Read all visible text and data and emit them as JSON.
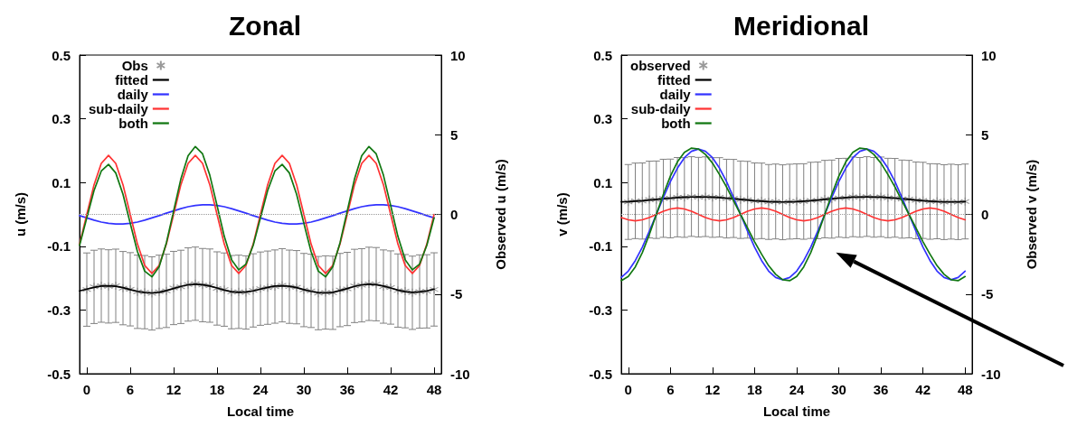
{
  "chart_data": [
    {
      "type": "line",
      "title": "Zonal",
      "xlabel": "Local time",
      "ylabel": "u (m/s)",
      "y2label": "Observed u (m/s)",
      "x": [
        -1,
        0,
        1,
        2,
        3,
        4,
        5,
        6,
        7,
        8,
        9,
        10,
        11,
        12,
        13,
        14,
        15,
        16,
        17,
        18,
        19,
        20,
        21,
        22,
        23,
        24,
        25,
        26,
        27,
        28,
        29,
        30,
        31,
        32,
        33,
        34,
        35,
        36,
        37,
        38,
        39,
        40,
        41,
        42,
        43,
        44,
        45,
        46,
        47,
        48
      ],
      "xlim": [
        -1,
        49
      ],
      "xticks": [
        0,
        6,
        12,
        18,
        24,
        30,
        36,
        42,
        48
      ],
      "ylim": [
        -0.5,
        0.5
      ],
      "yticks": [
        -0.5,
        -0.3,
        -0.1,
        0.1,
        0.3,
        0.5
      ],
      "y2lim": [
        -10,
        10
      ],
      "y2ticks": [
        -10,
        -5,
        0,
        5,
        10
      ],
      "grid": false,
      "legend": "top left",
      "ref_lines": [
        {
          "axis": "y",
          "value": 0,
          "color": "#999999",
          "line_style": "dotted"
        }
      ],
      "series": [
        {
          "name": "Obs",
          "type": "scatter",
          "axis": "y2",
          "marker": "cross",
          "color": "#808080",
          "x": [
            0,
            1,
            2,
            3,
            4,
            5,
            6,
            7,
            8,
            9,
            10,
            11,
            12,
            13,
            14,
            15,
            16,
            17,
            18,
            19,
            20,
            21,
            22,
            23,
            24,
            25,
            26,
            27,
            28,
            29,
            30,
            31,
            32,
            33,
            34,
            35,
            36,
            37,
            38,
            39,
            40,
            41,
            42,
            43,
            44,
            45,
            46,
            47,
            48
          ],
          "values": [
            -4.72,
            -4.55,
            -4.47,
            -4.52,
            -4.48,
            -4.63,
            -4.7,
            -4.86,
            -4.88,
            -4.96,
            -4.86,
            -4.8,
            -4.62,
            -4.55,
            -4.4,
            -4.35,
            -4.44,
            -4.47,
            -4.65,
            -4.72,
            -4.88,
            -4.86,
            -4.9,
            -4.77,
            -4.66,
            -4.6,
            -4.53,
            -4.45,
            -4.54,
            -4.57,
            -4.75,
            -4.8,
            -4.94,
            -4.9,
            -4.92,
            -4.75,
            -4.68,
            -4.49,
            -4.45,
            -4.36,
            -4.38,
            -4.53,
            -4.59,
            -4.78,
            -4.82,
            -4.92,
            -4.84,
            -4.83,
            -4.71
          ],
          "errors": [
            2.3,
            2.3,
            2.3,
            2.3,
            2.3,
            2.3,
            2.3,
            2.3,
            2.3,
            2.3,
            2.3,
            2.3,
            2.3,
            2.3,
            2.3,
            2.3,
            2.3,
            2.3,
            2.3,
            2.3,
            2.3,
            2.3,
            2.3,
            2.3,
            2.3,
            2.3,
            2.3,
            2.3,
            2.3,
            2.3,
            2.3,
            2.3,
            2.3,
            2.3,
            2.3,
            2.3,
            2.3,
            2.3,
            2.3,
            2.3,
            2.3,
            2.3,
            2.3,
            2.3,
            2.3,
            2.3,
            2.3,
            2.3,
            2.3
          ]
        },
        {
          "name": "fitted",
          "axis": "y2",
          "color": "#000000",
          "values": [
            -4.8,
            -4.69,
            -4.58,
            -4.5,
            -4.48,
            -4.51,
            -4.6,
            -4.72,
            -4.83,
            -4.91,
            -4.93,
            -4.89,
            -4.78,
            -4.65,
            -4.52,
            -4.42,
            -4.38,
            -4.41,
            -4.5,
            -4.62,
            -4.75,
            -4.85,
            -4.89,
            -4.87,
            -4.8,
            -4.69,
            -4.58,
            -4.5,
            -4.48,
            -4.51,
            -4.6,
            -4.72,
            -4.83,
            -4.91,
            -4.93,
            -4.89,
            -4.78,
            -4.65,
            -4.52,
            -4.42,
            -4.38,
            -4.41,
            -4.5,
            -4.62,
            -4.75,
            -4.85,
            -4.89,
            -4.87,
            -4.8,
            -4.69
          ]
        },
        {
          "name": "daily",
          "color": "#3333ff",
          "values": [
            -0.004,
            -0.011,
            -0.018,
            -0.024,
            -0.028,
            -0.03,
            -0.03,
            -0.028,
            -0.024,
            -0.018,
            -0.011,
            -0.004,
            0.004,
            0.011,
            0.018,
            0.024,
            0.028,
            0.03,
            0.03,
            0.028,
            0.024,
            0.018,
            0.011,
            0.004,
            -0.004,
            -0.011,
            -0.018,
            -0.024,
            -0.028,
            -0.03,
            -0.03,
            -0.028,
            -0.024,
            -0.018,
            -0.011,
            -0.004,
            0.004,
            0.011,
            0.018,
            0.024,
            0.028,
            0.03,
            0.03,
            0.028,
            0.024,
            0.018,
            0.011,
            0.004,
            -0.004,
            -0.011
          ]
        },
        {
          "name": "sub-daily",
          "color": "#ff3333",
          "values": [
            -0.093,
            0,
            0.093,
            0.16,
            0.185,
            0.16,
            0.093,
            0,
            -0.093,
            -0.16,
            -0.185,
            -0.16,
            -0.093,
            0,
            0.093,
            0.16,
            0.185,
            0.16,
            0.093,
            0,
            -0.093,
            -0.16,
            -0.185,
            -0.16,
            -0.093,
            0,
            0.093,
            0.16,
            0.185,
            0.16,
            0.093,
            0,
            -0.093,
            -0.16,
            -0.185,
            -0.16,
            -0.093,
            0,
            0.093,
            0.16,
            0.185,
            0.16,
            0.093,
            0,
            -0.093,
            -0.16,
            -0.185,
            -0.16,
            -0.093,
            0
          ]
        },
        {
          "name": "both",
          "color": "#117711",
          "values": [
            -0.097,
            -0.011,
            0.075,
            0.136,
            0.157,
            0.13,
            0.063,
            -0.028,
            -0.117,
            -0.178,
            -0.196,
            -0.164,
            -0.089,
            0.011,
            0.111,
            0.184,
            0.213,
            0.19,
            0.123,
            0.028,
            -0.069,
            -0.142,
            -0.174,
            -0.156,
            -0.097,
            -0.011,
            0.075,
            0.136,
            0.157,
            0.13,
            0.063,
            -0.028,
            -0.117,
            -0.178,
            -0.196,
            -0.164,
            -0.089,
            0.011,
            0.111,
            0.184,
            0.213,
            0.19,
            0.123,
            0.028,
            -0.069,
            -0.142,
            -0.174,
            -0.156,
            -0.097,
            -0.011
          ]
        }
      ]
    },
    {
      "type": "line",
      "title": "Meridional",
      "xlabel": "Local time",
      "ylabel": "v (m/s)",
      "y2label": "Observed v (m/s)",
      "x": [
        -1,
        0,
        1,
        2,
        3,
        4,
        5,
        6,
        7,
        8,
        9,
        10,
        11,
        12,
        13,
        14,
        15,
        16,
        17,
        18,
        19,
        20,
        21,
        22,
        23,
        24,
        25,
        26,
        27,
        28,
        29,
        30,
        31,
        32,
        33,
        34,
        35,
        36,
        37,
        38,
        39,
        40,
        41,
        42,
        43,
        44,
        45,
        46,
        47,
        48
      ],
      "xlim": [
        -1,
        49
      ],
      "xticks": [
        0,
        6,
        12,
        18,
        24,
        30,
        36,
        42,
        48
      ],
      "ylim": [
        -0.5,
        0.5
      ],
      "yticks": [
        -0.5,
        -0.3,
        -0.1,
        0.1,
        0.3,
        0.5
      ],
      "y2lim": [
        -10,
        10
      ],
      "y2ticks": [
        -10,
        -5,
        0,
        5,
        10
      ],
      "grid": false,
      "legend": "top left",
      "ref_lines": [
        {
          "axis": "y",
          "value": 0,
          "color": "#999999",
          "line_style": "dotted"
        }
      ],
      "series": [
        {
          "name": "observed",
          "type": "scatter",
          "axis": "y2",
          "marker": "cross",
          "color": "#808080",
          "x": [
            0,
            1,
            2,
            3,
            4,
            5,
            6,
            7,
            8,
            9,
            10,
            11,
            12,
            13,
            14,
            15,
            16,
            17,
            18,
            19,
            20,
            21,
            22,
            23,
            24,
            25,
            26,
            27,
            28,
            29,
            30,
            31,
            32,
            33,
            34,
            35,
            36,
            37,
            38,
            39,
            40,
            41,
            42,
            43,
            44,
            45,
            46,
            47,
            48
          ],
          "values": [
            0.78,
            0.85,
            0.84,
            0.93,
            0.92,
            1.01,
            1.0,
            1.08,
            1.06,
            1.12,
            1.08,
            1.11,
            1.06,
            1.07,
            0.99,
            1.0,
            0.92,
            0.92,
            0.84,
            0.85,
            0.78,
            0.81,
            0.76,
            0.8,
            0.82,
            0.81,
            0.88,
            0.88,
            0.96,
            0.96,
            1.04,
            1.03,
            1.1,
            1.07,
            1.12,
            1.07,
            1.1,
            1.03,
            1.04,
            0.96,
            0.96,
            0.88,
            0.88,
            0.81,
            0.82,
            0.77,
            0.8,
            0.77,
            0.81
          ],
          "errors": [
            2.35,
            2.37,
            2.39,
            2.41,
            2.43,
            2.45,
            2.47,
            2.49,
            2.5,
            2.5,
            2.5,
            2.5,
            2.5,
            2.49,
            2.47,
            2.45,
            2.43,
            2.41,
            2.39,
            2.37,
            2.35,
            2.35,
            2.35,
            2.35,
            2.35,
            2.37,
            2.39,
            2.41,
            2.43,
            2.45,
            2.47,
            2.49,
            2.5,
            2.5,
            2.5,
            2.5,
            2.5,
            2.49,
            2.47,
            2.45,
            2.43,
            2.41,
            2.39,
            2.37,
            2.35,
            2.35,
            2.35,
            2.35,
            2.35
          ]
        },
        {
          "name": "fitted",
          "axis": "y2",
          "color": "#000000",
          "values": [
            0.79,
            0.8,
            0.83,
            0.86,
            0.9,
            0.94,
            0.98,
            1.02,
            1.05,
            1.08,
            1.09,
            1.1,
            1.09,
            1.08,
            1.05,
            1.02,
            0.98,
            0.94,
            0.9,
            0.86,
            0.83,
            0.8,
            0.79,
            0.78,
            0.79,
            0.8,
            0.83,
            0.86,
            0.9,
            0.94,
            0.98,
            1.02,
            1.05,
            1.08,
            1.09,
            1.1,
            1.09,
            1.08,
            1.05,
            1.02,
            0.98,
            0.94,
            0.9,
            0.86,
            0.83,
            0.8,
            0.79,
            0.78,
            0.79,
            0.8
          ]
        },
        {
          "name": "daily",
          "color": "#3333ff",
          "values": [
            -0.198,
            -0.178,
            -0.145,
            -0.103,
            -0.053,
            0,
            0.053,
            0.103,
            0.145,
            0.178,
            0.198,
            0.205,
            0.198,
            0.178,
            0.145,
            0.103,
            0.053,
            0,
            -0.053,
            -0.103,
            -0.145,
            -0.178,
            -0.198,
            -0.205,
            -0.198,
            -0.178,
            -0.145,
            -0.103,
            -0.053,
            0,
            0.053,
            0.103,
            0.145,
            0.178,
            0.198,
            0.205,
            0.198,
            0.178,
            0.145,
            0.103,
            0.053,
            0,
            -0.053,
            -0.103,
            -0.145,
            -0.178,
            -0.198,
            -0.205,
            -0.198,
            -0.178
          ]
        },
        {
          "name": "sub-daily",
          "color": "#ff3333",
          "values": [
            -0.01,
            -0.017,
            -0.02,
            -0.017,
            -0.01,
            0,
            0.01,
            0.017,
            0.02,
            0.017,
            0.01,
            0,
            -0.01,
            -0.017,
            -0.02,
            -0.017,
            -0.01,
            0,
            0.01,
            0.017,
            0.02,
            0.017,
            0.01,
            0,
            -0.01,
            -0.017,
            -0.02,
            -0.017,
            -0.01,
            0,
            0.01,
            0.017,
            0.02,
            0.017,
            0.01,
            0,
            -0.01,
            -0.017,
            -0.02,
            -0.017,
            -0.01,
            0,
            0.01,
            0.017,
            0.02,
            0.017,
            0.01,
            0,
            -0.01,
            -0.017
          ]
        },
        {
          "name": "both",
          "color": "#117711",
          "values": [
            -0.208,
            -0.195,
            -0.165,
            -0.12,
            -0.063,
            0,
            0.063,
            0.12,
            0.165,
            0.195,
            0.208,
            0.205,
            0.188,
            0.161,
            0.125,
            0.086,
            0.043,
            0,
            -0.043,
            -0.086,
            -0.125,
            -0.161,
            -0.188,
            -0.205,
            -0.208,
            -0.195,
            -0.165,
            -0.12,
            -0.063,
            0,
            0.063,
            0.12,
            0.165,
            0.195,
            0.208,
            0.205,
            0.188,
            0.161,
            0.125,
            0.086,
            0.043,
            0,
            -0.043,
            -0.086,
            -0.125,
            -0.161,
            -0.188,
            -0.205,
            -0.208,
            -0.195
          ]
        }
      ]
    }
  ]
}
